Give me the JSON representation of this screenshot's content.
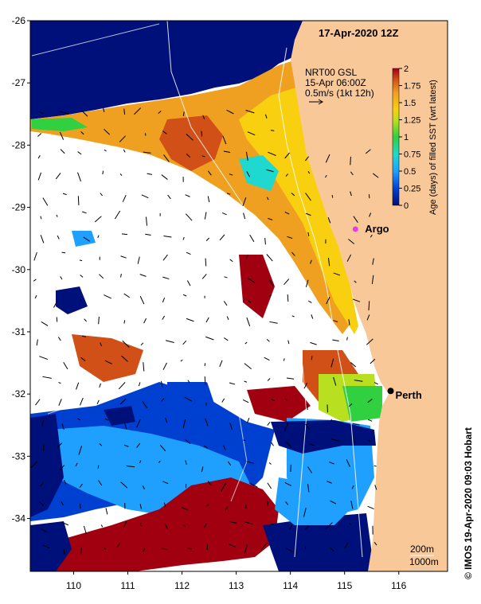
{
  "title": "17-Apr-2020 12Z",
  "current_info": {
    "line1": "NRT00 GSL",
    "line2": "15-Apr 06:00Z",
    "line3": "0.5m/s (1kt 12h)"
  },
  "colorbar": {
    "label": "Age (days) of filled SST (wrt latest)",
    "ticks": [
      "0",
      "0.25",
      "0.5",
      "0.75",
      "1",
      "1.25",
      "1.5",
      "1.75",
      "2"
    ],
    "colors": [
      "#00107a",
      "#0040d0",
      "#1fa0ff",
      "#1fd8d0",
      "#30d040",
      "#b8e020",
      "#f8d010",
      "#f0a020",
      "#d05018",
      "#a00010"
    ]
  },
  "axes": {
    "lon_ticks": [
      "110",
      "111",
      "112",
      "113",
      "114",
      "115",
      "116"
    ],
    "lat_ticks": [
      "-26",
      "-27",
      "-28",
      "-29",
      "-30",
      "-31",
      "-32",
      "-33",
      "-34"
    ],
    "lon_range": [
      109.2,
      116.9
    ],
    "lat_range": [
      -26.0,
      -34.85
    ]
  },
  "places": {
    "argo": {
      "label": "Argo",
      "lon": 115.2,
      "lat": -29.35,
      "color": "#e040e0"
    },
    "perth": {
      "label": "Perth",
      "lon": 115.85,
      "lat": -31.95
    }
  },
  "legend": {
    "isobath1": "200m",
    "isobath2": "1000m"
  },
  "credit": "© IMOS 19-Apr-2020 09:03 Hobart",
  "colors": {
    "land": "#f8c898",
    "no_data": "#ffffff",
    "old": "#00107a"
  }
}
